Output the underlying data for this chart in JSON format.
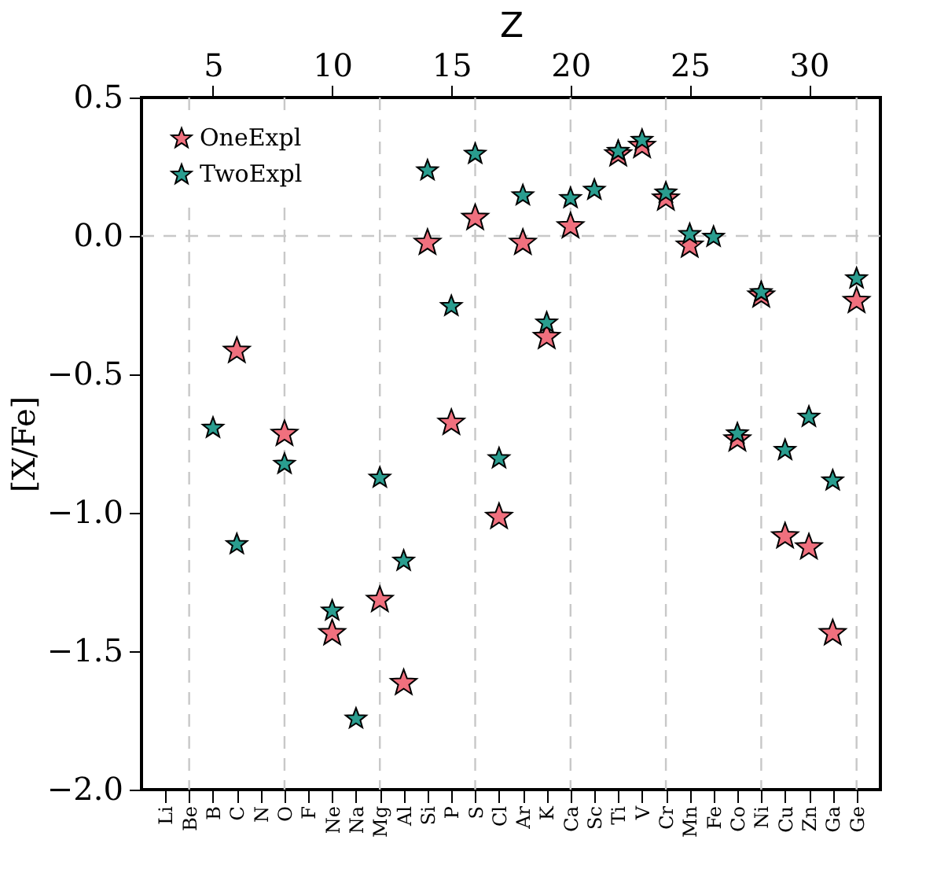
{
  "chart_data": {
    "type": "scatter",
    "xlabel": null,
    "x2label": "Z",
    "ylabel": "[X/Fe]",
    "marker": "star",
    "legend": "top left",
    "grid": false,
    "categories": [
      "Li",
      "Be",
      "B",
      "C",
      "N",
      "O",
      "F",
      "Ne",
      "Na",
      "Mg",
      "Al",
      "Si",
      "P",
      "S",
      "Cl",
      "Ar",
      "K",
      "Ca",
      "Sc",
      "Ti",
      "V",
      "Cr",
      "Mn",
      "Fe",
      "Co",
      "Ni",
      "Cu",
      "Zn",
      "Ga",
      "Ge"
    ],
    "series": [
      {
        "name": "OneExpl",
        "color": "#f0707e",
        "values": [
          null,
          null,
          null,
          -0.41,
          null,
          -0.71,
          null,
          -1.43,
          null,
          -1.31,
          -1.61,
          -0.02,
          -0.67,
          0.07,
          -1.01,
          -0.02,
          -0.36,
          0.04,
          null,
          0.3,
          0.33,
          0.14,
          -0.03,
          null,
          -0.73,
          -0.21,
          -1.08,
          -1.12,
          -1.43,
          -0.23
        ]
      },
      {
        "name": "TwoExpl",
        "color": "#2a9d8f",
        "values": [
          null,
          null,
          -0.69,
          -1.11,
          null,
          -0.82,
          null,
          -1.35,
          -1.74,
          -0.87,
          -1.17,
          0.24,
          -0.25,
          0.3,
          -0.8,
          0.15,
          -0.31,
          0.14,
          0.17,
          0.31,
          0.35,
          0.16,
          0.01,
          0.0,
          -0.71,
          -0.2,
          -0.77,
          -0.65,
          -0.88,
          -0.15
        ]
      }
    ],
    "x2lim": [
      2,
      33
    ],
    "x2ticks": [
      5,
      10,
      15,
      20,
      25,
      30
    ],
    "ylim": [
      -2.0,
      0.5
    ],
    "yticks": [
      {
        "value": 0.5,
        "label": "0.5"
      },
      {
        "value": 0,
        "label": "0.0"
      },
      {
        "value": -0.5,
        "label": "−0.5"
      },
      {
        "value": -1.0,
        "label": "−1.0"
      },
      {
        "value": -1.5,
        "label": "−1.5"
      },
      {
        "value": -2.0,
        "label": "−2.0"
      }
    ],
    "ref_lines": [
      {
        "axis": "x2",
        "value": 4,
        "color": "#c8c8c8",
        "line_style": "dashed"
      },
      {
        "axis": "x2",
        "value": 8,
        "color": "#c8c8c8",
        "line_style": "dashed"
      },
      {
        "axis": "x2",
        "value": 12,
        "color": "#c8c8c8",
        "line_style": "dashed"
      },
      {
        "axis": "x2",
        "value": 16,
        "color": "#c8c8c8",
        "line_style": "dashed"
      },
      {
        "axis": "x2",
        "value": 20,
        "color": "#c8c8c8",
        "line_style": "dashed"
      },
      {
        "axis": "x2",
        "value": 24,
        "color": "#c8c8c8",
        "line_style": "dashed"
      },
      {
        "axis": "x2",
        "value": 28,
        "color": "#c8c8c8",
        "line_style": "dashed"
      },
      {
        "axis": "x2",
        "value": 32,
        "color": "#c8c8c8",
        "line_style": "dashed"
      },
      {
        "axis": "y",
        "value": 0,
        "color": "#c8c8c8",
        "line_style": "dashed"
      }
    ]
  }
}
